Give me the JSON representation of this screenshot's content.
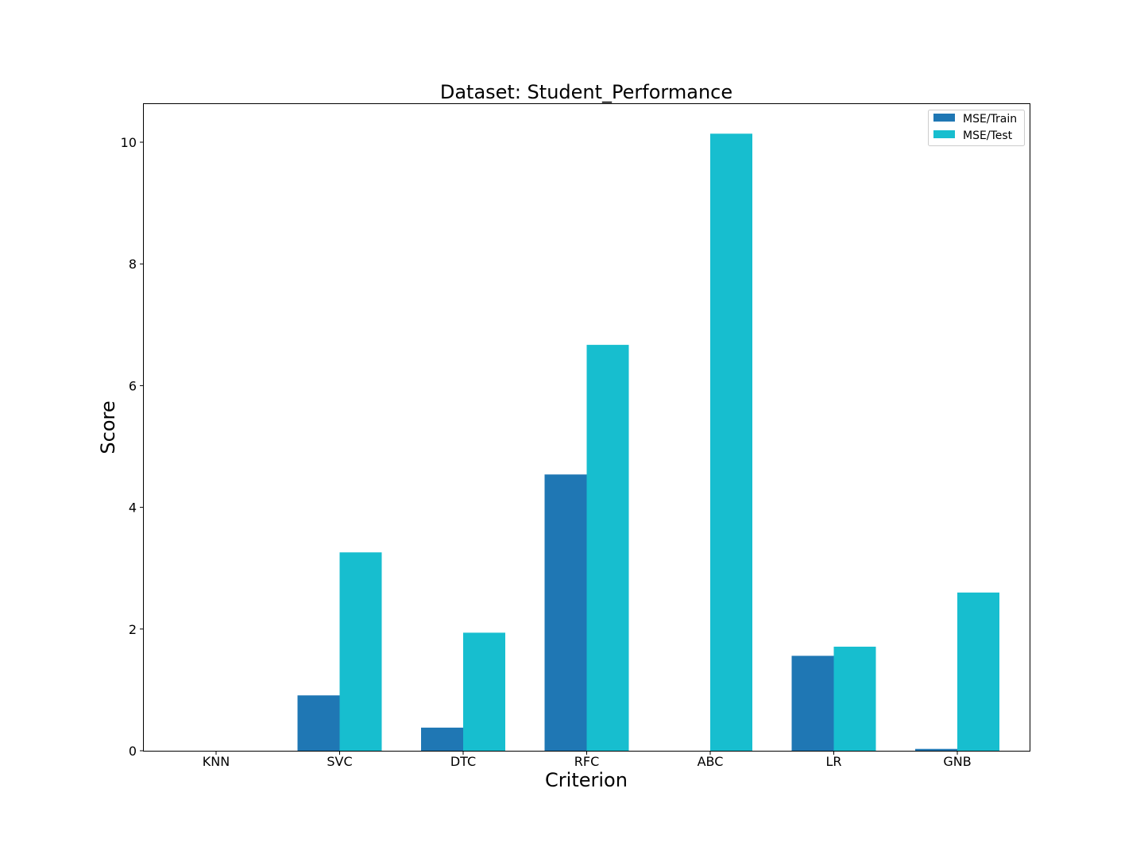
{
  "chart_data": {
    "type": "bar",
    "title": "Dataset: Student_Performance",
    "xlabel": "Criterion",
    "ylabel": "Score",
    "categories": [
      "KNN",
      "SVC",
      "DTC",
      "RFC",
      "ABC",
      "LR",
      "GNB"
    ],
    "series": [
      {
        "name": "MSE/Train",
        "color": "#1f77b4",
        "values": [
          0,
          0.91,
          0.38,
          4.54,
          0,
          1.56,
          0.03
        ]
      },
      {
        "name": "MSE/Test",
        "color": "#17becf",
        "values": [
          0,
          3.26,
          1.94,
          6.67,
          10.14,
          1.71,
          2.6
        ]
      }
    ],
    "yticks": [
      0,
      2,
      4,
      6,
      8,
      10
    ],
    "ylim": [
      0,
      10.65
    ],
    "grid": false,
    "legend_position": "top-right"
  }
}
